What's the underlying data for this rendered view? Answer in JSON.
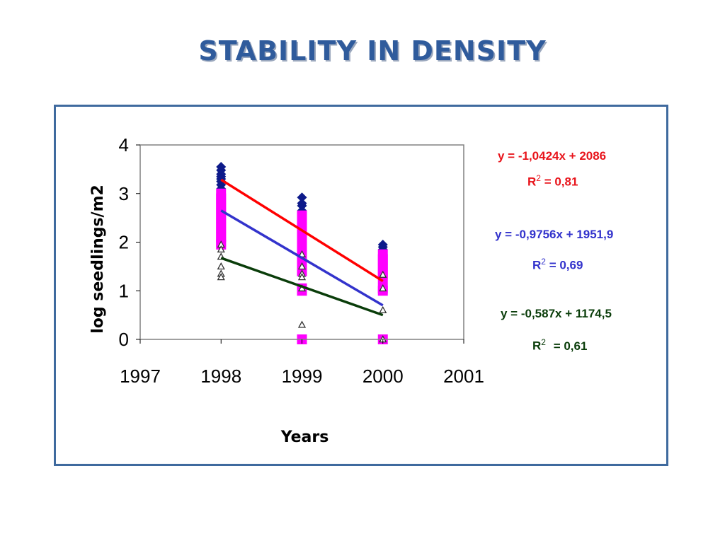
{
  "slide": {
    "title": "STABILITY IN DENSITY"
  },
  "colors": {
    "title": "#2f5b9c",
    "frame": "#3f6a9e",
    "navy_diamonds": "#0d1a8a",
    "magenta_squares": "#ff00ff",
    "triangles": "#333333",
    "red_fit": "#ff0000",
    "blue_fit": "#3333cc",
    "green_fit": "#0a3d0a"
  },
  "annotations": [
    {
      "equation": "y = -1,0424x + 2086",
      "r2_prefix": "R",
      "r2_sup": "2",
      "r2_value": "= 0,81",
      "color": "#e8141b"
    },
    {
      "equation": "y = -0,9756x + 1951,9",
      "r2_prefix": "R",
      "r2_sup": "2",
      "r2_value": "= 0,69",
      "color": "#3333cc"
    },
    {
      "equation": "y = -0,587x + 1174,5",
      "r2_prefix": "R",
      "r2_sup": "2",
      "r2_value": "= 0,61",
      "color": "#0a3d0a"
    }
  ],
  "chart_data": {
    "type": "scatter",
    "title": "",
    "xlabel": "Years",
    "ylabel": "log seedlings/m2",
    "xlim": [
      1997,
      2001
    ],
    "ylim": [
      0,
      4
    ],
    "x_ticks": [
      "1997",
      "1998",
      "1999",
      "2000",
      "2001"
    ],
    "y_ticks": [
      "0",
      "1",
      "2",
      "3",
      "4"
    ],
    "grid": false,
    "legend": "none",
    "series": [
      {
        "marker": "diamond",
        "color": "#0d1a8a",
        "points": [
          [
            1998,
            3.55
          ],
          [
            1998,
            3.48
          ],
          [
            1998,
            3.4
          ],
          [
            1998,
            3.35
          ],
          [
            1998,
            3.3
          ],
          [
            1998,
            3.25
          ],
          [
            1998,
            3.18
          ],
          [
            1998,
            3.1
          ],
          [
            1999,
            2.92
          ],
          [
            1999,
            2.8
          ],
          [
            1999,
            2.75
          ],
          [
            1999,
            2.65
          ],
          [
            1999,
            2.58
          ],
          [
            2000,
            1.95
          ],
          [
            2000,
            1.9
          ],
          [
            2000,
            1.85
          ]
        ]
      },
      {
        "marker": "square",
        "color": "#ff00ff",
        "points": [
          [
            1998,
            3.0
          ],
          [
            1998,
            2.9
          ],
          [
            1998,
            2.8
          ],
          [
            1998,
            2.7
          ],
          [
            1998,
            2.6
          ],
          [
            1998,
            2.5
          ],
          [
            1998,
            2.4
          ],
          [
            1998,
            2.3
          ],
          [
            1998,
            2.2
          ],
          [
            1998,
            2.1
          ],
          [
            1998,
            2.0
          ],
          [
            1998,
            1.95
          ],
          [
            1999,
            2.55
          ],
          [
            1999,
            2.45
          ],
          [
            1999,
            2.3
          ],
          [
            1999,
            2.2
          ],
          [
            1999,
            2.1
          ],
          [
            1999,
            2.0
          ],
          [
            1999,
            1.9
          ],
          [
            1999,
            1.8
          ],
          [
            1999,
            1.7
          ],
          [
            1999,
            1.6
          ],
          [
            1999,
            1.5
          ],
          [
            1999,
            1.4
          ],
          [
            1999,
            1.05
          ],
          [
            1999,
            1.0
          ],
          [
            1999,
            0.0
          ],
          [
            2000,
            1.75
          ],
          [
            2000,
            1.65
          ],
          [
            2000,
            1.55
          ],
          [
            2000,
            1.45
          ],
          [
            2000,
            1.35
          ],
          [
            2000,
            1.25
          ],
          [
            2000,
            1.05
          ],
          [
            2000,
            1.0
          ],
          [
            2000,
            0.0
          ]
        ]
      },
      {
        "marker": "triangle",
        "color": "#333333",
        "points": [
          [
            1998,
            1.95
          ],
          [
            1998,
            1.85
          ],
          [
            1998,
            1.7
          ],
          [
            1998,
            1.5
          ],
          [
            1998,
            1.35
          ],
          [
            1998,
            1.28
          ],
          [
            1999,
            1.75
          ],
          [
            1999,
            1.5
          ],
          [
            1999,
            1.35
          ],
          [
            1999,
            1.28
          ],
          [
            1999,
            1.05
          ],
          [
            1999,
            0.3
          ],
          [
            2000,
            1.33
          ],
          [
            2000,
            1.05
          ],
          [
            2000,
            0.6
          ],
          [
            2000,
            0.0
          ]
        ]
      }
    ],
    "trendlines": [
      {
        "slope": -1.0424,
        "intercept": 2086,
        "x_range": [
          1998,
          2000
        ],
        "color": "#ff0000"
      },
      {
        "slope": -0.9756,
        "intercept": 1951.9,
        "x_range": [
          1998,
          2000
        ],
        "color": "#3333cc"
      },
      {
        "slope": -0.587,
        "intercept": 1174.5,
        "x_range": [
          1998,
          2000
        ],
        "color": "#0a3d0a"
      }
    ]
  }
}
